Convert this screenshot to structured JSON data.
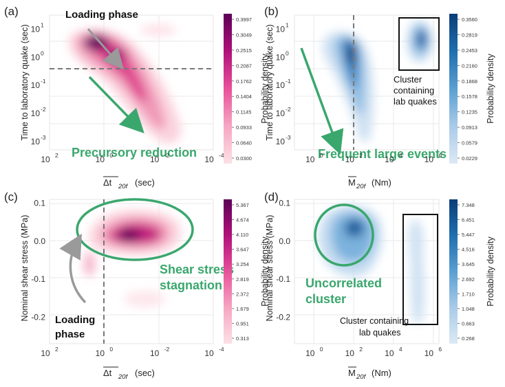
{
  "panels": [
    {
      "id": "a",
      "label": "(a)",
      "xlabel_main": "Δt",
      "xlabel_sub": "20f",
      "xlabel_unit": "(sec)",
      "ylabel": "Time to laboratory quake (sec)",
      "xticks": [
        {
          "v": 2,
          "t": "10"
        },
        {
          "v": 0,
          "t": "10"
        },
        {
          "v": -2,
          "t": "10"
        },
        {
          "v": -4,
          "t": "10"
        }
      ],
      "xtick_exp": [
        "2",
        "0",
        "-2",
        "-4"
      ],
      "yticks": [
        {
          "v": 1,
          "t": "10",
          "e": "1"
        },
        {
          "v": 0,
          "t": "10",
          "e": "0"
        },
        {
          "v": -1,
          "t": "10",
          "e": "-1"
        },
        {
          "v": -2,
          "t": "10",
          "e": "-2"
        },
        {
          "v": -3,
          "t": "10",
          "e": "-3"
        }
      ],
      "colorbar": {
        "label": "Probability density",
        "colors": [
          "#fde0e6",
          "#f6a6c2",
          "#e9509a",
          "#b1107a",
          "#5c0057"
        ],
        "ticks": [
          "0.3997",
          "0.3049",
          "0.2515",
          "0.2087",
          "0.1762",
          "0.1404",
          "0.1145",
          "0.0933",
          "0.0640",
          "0.0300"
        ]
      },
      "annotations": {
        "top": "Loading phase",
        "bottom": "Precursory reduction"
      }
    },
    {
      "id": "b",
      "label": "(b)",
      "xlabel_main": "M",
      "xlabel_sub": "20f",
      "xlabel_unit": "(Nm)",
      "ylabel": "Time to laboratory quake (sec)",
      "xticks": [
        {
          "v": 0,
          "t": "10"
        },
        {
          "v": 2,
          "t": "10"
        },
        {
          "v": 4,
          "t": "10"
        },
        {
          "v": 6,
          "t": "10"
        }
      ],
      "xtick_exp": [
        "0",
        "2",
        "4",
        "6"
      ],
      "yticks": [
        {
          "v": 1,
          "t": "10",
          "e": "1"
        },
        {
          "v": 0,
          "t": "10",
          "e": "0"
        },
        {
          "v": -1,
          "t": "10",
          "e": "-1"
        },
        {
          "v": -2,
          "t": "10",
          "e": "-2"
        },
        {
          "v": -3,
          "t": "10",
          "e": "-3"
        }
      ],
      "colorbar": {
        "label": "Probability density",
        "colors": [
          "#dde9f5",
          "#a9cbe8",
          "#5a9fd1",
          "#1f6eae",
          "#0c3d78"
        ],
        "ticks": [
          "0.3560",
          "0.2819",
          "0.2453",
          "0.2160",
          "0.1868",
          "0.1578",
          "0.1235",
          "0.0913",
          "0.0579",
          "0.0229"
        ]
      },
      "annotations": {
        "bottom": "Frequent large events",
        "box": [
          "Cluster",
          "containing",
          "lab quakes"
        ]
      }
    },
    {
      "id": "c",
      "label": "(c)",
      "xlabel_main": "Δt",
      "xlabel_sub": "20f",
      "xlabel_unit": "(sec)",
      "ylabel": "Nominal shear stress (MPa)",
      "xticks": [
        {
          "v": 2,
          "t": "10"
        },
        {
          "v": 0,
          "t": "10"
        },
        {
          "v": -2,
          "t": "10"
        },
        {
          "v": -4,
          "t": "10"
        }
      ],
      "xtick_exp": [
        "2",
        "0",
        "-2",
        "-4"
      ],
      "yticks": [
        {
          "v": 0.1,
          "t": "0.1"
        },
        {
          "v": 0.0,
          "t": "0.0"
        },
        {
          "v": -0.1,
          "t": "-0.1"
        },
        {
          "v": -0.2,
          "t": "-0.2"
        }
      ],
      "colorbar": {
        "label": "Probability density",
        "colors": [
          "#fde0e6",
          "#f6a6c2",
          "#e9509a",
          "#b1107a",
          "#5c0057"
        ],
        "ticks": [
          "5.367",
          "4.674",
          "4.110",
          "3.647",
          "3.254",
          "2.819",
          "2.372",
          "1.679",
          "0.951",
          "0.313"
        ]
      },
      "annotations": {
        "left": [
          "Loading",
          "phase"
        ],
        "right": [
          "Shear stress",
          "stagnation"
        ]
      }
    },
    {
      "id": "d",
      "label": "(d)",
      "xlabel_main": "M",
      "xlabel_sub": "20f",
      "xlabel_unit": "(Nm)",
      "ylabel": "Nominal shear stress (MPa)",
      "xticks": [
        {
          "v": 0,
          "t": "10"
        },
        {
          "v": 2,
          "t": "10"
        },
        {
          "v": 4,
          "t": "10"
        },
        {
          "v": 6,
          "t": "10"
        }
      ],
      "xtick_exp": [
        "0",
        "2",
        "4",
        "6"
      ],
      "yticks": [
        {
          "v": 0.1,
          "t": "0.1"
        },
        {
          "v": 0.0,
          "t": "0.0"
        },
        {
          "v": -0.1,
          "t": "-0.1"
        },
        {
          "v": -0.2,
          "t": "-0.2"
        }
      ],
      "colorbar": {
        "label": "Probability density",
        "colors": [
          "#dde9f5",
          "#a9cbe8",
          "#5a9fd1",
          "#1f6eae",
          "#0c3d78"
        ],
        "ticks": [
          "7.348",
          "6.451",
          "5.447",
          "4.516",
          "3.645",
          "2.692",
          "1.710",
          "1.048",
          "0.663",
          "0.268"
        ]
      },
      "annotations": {
        "left": [
          "Uncorrelated",
          "cluster"
        ],
        "box": [
          "Cluster containing",
          "lab quakes"
        ]
      }
    }
  ],
  "chart_data": [
    {
      "panel": "a",
      "type": "heatmap",
      "x_axis": "log10 of Δt20f (sec), inverted",
      "xlim": [
        2,
        -4
      ],
      "ylim": [
        -3.3,
        1.5
      ],
      "reference_lines": {
        "y": 0
      },
      "blobs": [
        {
          "x": 0.5,
          "y": 1.0,
          "level": 1.0
        },
        {
          "x": -0.3,
          "y": 0.7,
          "level": 0.9
        },
        {
          "x": -0.6,
          "y": -0.2,
          "level": 0.7
        },
        {
          "x": -0.9,
          "y": -0.9,
          "level": 0.55
        },
        {
          "x": -1.3,
          "y": -1.6,
          "level": 0.35
        },
        {
          "x": -1.7,
          "y": -2.5,
          "level": 0.2
        },
        {
          "x": -1.8,
          "y": 1.3,
          "level": 0.15
        }
      ]
    },
    {
      "panel": "b",
      "type": "heatmap",
      "x_axis": "log10 of M20f (Nm)",
      "xlim": [
        -1,
        6.3
      ],
      "ylim": [
        -3.3,
        1.5
      ],
      "reference_lines": {
        "x": 2
      },
      "blobs": [
        {
          "x": 1.7,
          "y": 0.6,
          "level": 1.0
        },
        {
          "x": 1.3,
          "y": 1.1,
          "level": 0.8
        },
        {
          "x": 1.9,
          "y": -0.3,
          "level": 0.75
        },
        {
          "x": 2.1,
          "y": -1.2,
          "level": 0.5
        },
        {
          "x": 2.2,
          "y": -2.2,
          "level": 0.3
        },
        {
          "x": 5.2,
          "y": 1.1,
          "level": 0.9
        }
      ]
    },
    {
      "panel": "c",
      "type": "heatmap",
      "x_axis": "log10 of Δt20f (sec), inverted",
      "xlim": [
        2,
        -4
      ],
      "ylim": [
        -0.27,
        0.11
      ],
      "reference_lines": {
        "x": 0
      },
      "blobs": [
        {
          "x": -0.6,
          "y": 0.02,
          "level": 1.0
        },
        {
          "x": -1.2,
          "y": 0.03,
          "level": 0.9
        },
        {
          "x": -1.8,
          "y": 0.01,
          "level": 0.8
        },
        {
          "x": -1.0,
          "y": 0.06,
          "level": 0.6
        },
        {
          "x": 0.5,
          "y": -0.08,
          "level": 0.35
        },
        {
          "x": -1.0,
          "y": -0.17,
          "level": 0.12
        }
      ]
    },
    {
      "panel": "d",
      "type": "heatmap",
      "x_axis": "log10 of M20f (Nm)",
      "xlim": [
        -1,
        6.3
      ],
      "ylim": [
        -0.27,
        0.11
      ],
      "blobs": [
        {
          "x": 2.2,
          "y": 0.02,
          "level": 1.0
        },
        {
          "x": 1.5,
          "y": 0.05,
          "level": 0.7
        },
        {
          "x": 2.8,
          "y": 0.0,
          "level": 0.6
        },
        {
          "x": 5.4,
          "y": 0.0,
          "level": 0.15
        },
        {
          "x": 5.3,
          "y": -0.12,
          "level": 0.15
        }
      ]
    }
  ]
}
